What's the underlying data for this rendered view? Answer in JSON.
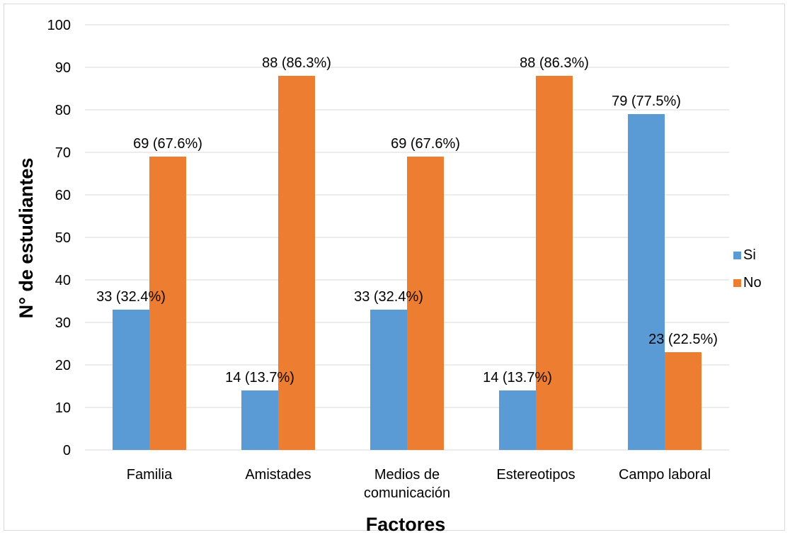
{
  "chart_data": {
    "type": "bar",
    "title": "",
    "xlabel": "Factores",
    "ylabel": "N° de estudiantes",
    "ylim": [
      0,
      100
    ],
    "ytick_step": 10,
    "grid": true,
    "legend_position": "right",
    "categories": [
      [
        "Familia"
      ],
      [
        "Amistades"
      ],
      [
        "Medios de",
        "comunicación"
      ],
      [
        "Estereotipos"
      ],
      [
        "Campo laboral"
      ]
    ],
    "series": [
      {
        "name": "Si",
        "color": "#5b9bd5",
        "values": [
          33,
          14,
          33,
          14,
          79
        ],
        "labels": [
          "33 (32.4%)",
          "14 (13.7%)",
          "33 (32.4%)",
          "14 (13.7%)",
          "79 (77.5%)"
        ]
      },
      {
        "name": "No",
        "color": "#ed7d31",
        "values": [
          69,
          88,
          69,
          88,
          23
        ],
        "labels": [
          "69 (67.6%)",
          "88 (86.3%)",
          "69 (67.6%)",
          "88 (86.3%)",
          "23 (22.5%)"
        ]
      }
    ]
  }
}
